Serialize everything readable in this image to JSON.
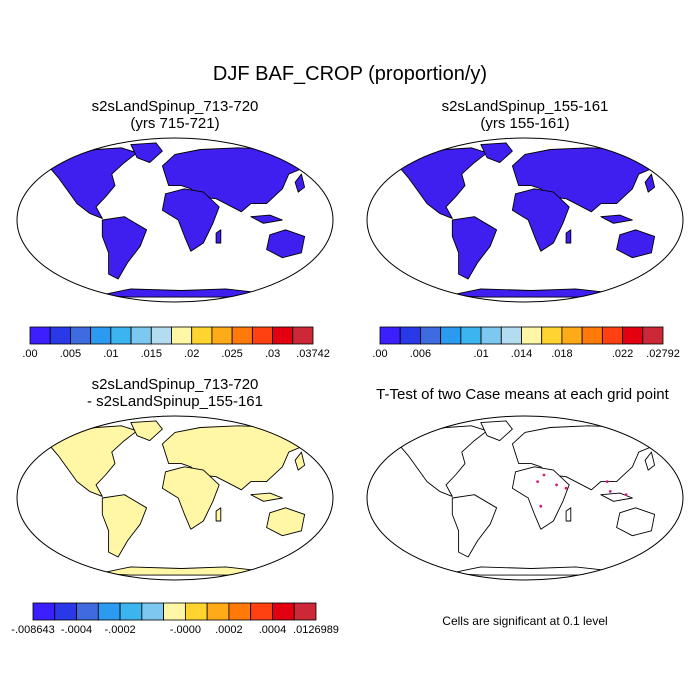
{
  "title": "DJF BAF_CROP (proportion/y)",
  "panels": [
    {
      "title_line1": "s2sLandSpinup_713-720",
      "title_line2": "(yrs 715-721)",
      "land_color": "#3f1ff0"
    },
    {
      "title_line1": "s2sLandSpinup_155-161",
      "title_line2": "(yrs 155-161)",
      "land_color": "#3f1ff0"
    },
    {
      "title_line1": "s2sLandSpinup_713-720",
      "title_line2": "- s2sLandSpinup_155-161",
      "land_color": "#fff6a6"
    },
    {
      "title_line1": "T-Test of two Case means at each grid point",
      "title_line2": "",
      "land_color": "#ffffff"
    }
  ],
  "colorbars": [
    {
      "colors": [
        "#3a1fff",
        "#2a39e8",
        "#3f6be0",
        "#2a9bf0",
        "#3cb4f0",
        "#7cc8f0",
        "#b4dcf0",
        "#fff6a6",
        "#ffd430",
        "#ffaa18",
        "#ff7a08",
        "#ff4010",
        "#e30010",
        "#cc2838"
      ],
      "labels": [
        ".00",
        ".005",
        ".01",
        ".015",
        ".02",
        ".025",
        ".03",
        ".03742"
      ]
    },
    {
      "colors": [
        "#3a1fff",
        "#2a39e8",
        "#3f6be0",
        "#2a9bf0",
        "#3cb4f0",
        "#7cc8f0",
        "#b4dcf0",
        "#fff6a6",
        "#ffd430",
        "#ffaa18",
        "#ff7a08",
        "#ff4010",
        "#e30010",
        "#cc2838"
      ],
      "labels": [
        ".00",
        ".006",
        ".01",
        ".014",
        ".018",
        ".022",
        ".02792"
      ]
    },
    {
      "colors": [
        "#3a1fff",
        "#2a39e8",
        "#3f6be0",
        "#2a9bf0",
        "#3cb4f0",
        "#7cc8f0",
        "#fff6a6",
        "#ffd430",
        "#ffaa18",
        "#ff7a08",
        "#ff4010",
        "#e30010",
        "#cc2838"
      ],
      "labels": [
        "-.008643",
        "-.0004",
        "-.0002",
        "-.0000",
        ".0002",
        ".0004",
        ".0126989"
      ]
    }
  ],
  "significance_note": "Cells are significant at 0.1 level"
}
